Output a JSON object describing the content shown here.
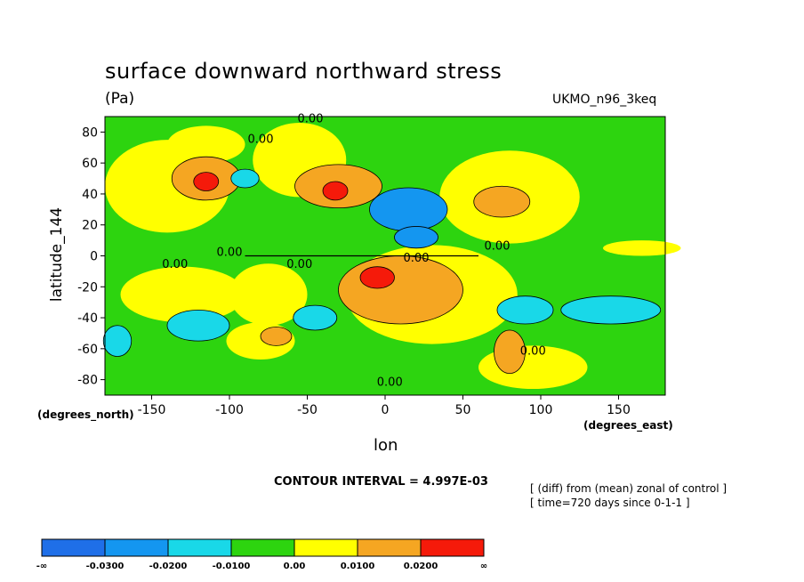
{
  "chart_data": {
    "type": "heatmap",
    "title": "surface downward northward stress",
    "units": "(Pa)",
    "model": "UKMO_n96_3keq",
    "ylabel": "latitude_144",
    "xlabel": "lon",
    "ylabel_units": "(degrees_north)",
    "xlabel_units": "(degrees_east)",
    "xlim": [
      -180,
      180
    ],
    "ylim": [
      -90,
      90
    ],
    "x_ticks": [
      "-150",
      "-100",
      "-50",
      "0",
      "50",
      "100",
      "150"
    ],
    "x_tick_values": [
      -150,
      -100,
      -50,
      0,
      50,
      100,
      150
    ],
    "y_ticks": [
      "80",
      "60",
      "40",
      "20",
      "0",
      "-20",
      "-40",
      "-60",
      "-80"
    ],
    "y_tick_values": [
      80,
      60,
      40,
      20,
      0,
      -20,
      -40,
      -60,
      -80
    ],
    "contour_interval": "CONTOUR INTERVAL = 4.997E-03",
    "notes": [
      "[ (diff) from (mean) zonal of control ]",
      "[ time=720 days since 0-1-1 ]"
    ],
    "contour_labels": [
      {
        "text": "0.00",
        "lon": -80,
        "lat": 76
      },
      {
        "text": "0.00",
        "lon": -48,
        "lat": 89
      },
      {
        "text": "0.00",
        "lon": -135,
        "lat": -5
      },
      {
        "text": "0.00",
        "lon": -100,
        "lat": 3
      },
      {
        "text": "0.00",
        "lon": -55,
        "lat": -5
      },
      {
        "text": "0.00",
        "lon": 20,
        "lat": -1
      },
      {
        "text": "0.00",
        "lon": 72,
        "lat": 7
      },
      {
        "text": "0.00",
        "lon": 95,
        "lat": -61
      },
      {
        "text": "0.00",
        "lon": 3,
        "lat": -81
      }
    ],
    "levels": [
      {
        "label": "-∞",
        "color": "#1f6fe8"
      },
      {
        "label": "-0.0300",
        "color": "#1496f0"
      },
      {
        "label": "-0.0200",
        "color": "#19d8e8"
      },
      {
        "label": "-0.0100",
        "color": "#2dd40f"
      },
      {
        "label": "0.00",
        "color": "#ffff00"
      },
      {
        "label": "0.0100",
        "color": "#f5a622"
      },
      {
        "label": "0.0200",
        "color": "#f51a0a"
      },
      {
        "label": "∞",
        "color": ""
      }
    ],
    "regions": [
      {
        "lon": -115,
        "lat": 50,
        "rlon": 22,
        "rlat": 14,
        "level": 5
      },
      {
        "lon": -115,
        "lat": 48,
        "rlon": 8,
        "rlat": 6,
        "level": 6
      },
      {
        "lon": -30,
        "lat": 45,
        "rlon": 28,
        "rlat": 14,
        "level": 5
      },
      {
        "lon": -32,
        "lat": 42,
        "rlon": 8,
        "rlat": 6,
        "level": 6
      },
      {
        "lon": 10,
        "lat": -22,
        "rlon": 40,
        "rlat": 22,
        "level": 5
      },
      {
        "lon": -5,
        "lat": -14,
        "rlon": 11,
        "rlat": 7,
        "level": 6
      },
      {
        "lon": 75,
        "lat": 35,
        "rlon": 18,
        "rlat": 10,
        "level": 5
      },
      {
        "lon": 80,
        "lat": -62,
        "rlon": 10,
        "rlat": 14,
        "level": 5
      },
      {
        "lon": -70,
        "lat": -52,
        "rlon": 10,
        "rlat": 6,
        "level": 5
      },
      {
        "lon": 15,
        "lat": 30,
        "rlon": 25,
        "rlat": 14,
        "level": 1
      },
      {
        "lon": 20,
        "lat": 12,
        "rlon": 14,
        "rlat": 7,
        "level": 1
      },
      {
        "lon": -90,
        "lat": 50,
        "rlon": 9,
        "rlat": 6,
        "level": 2
      },
      {
        "lon": -45,
        "lat": -40,
        "rlon": 14,
        "rlat": 8,
        "level": 2
      },
      {
        "lon": 90,
        "lat": -35,
        "rlon": 18,
        "rlat": 9,
        "level": 2
      },
      {
        "lon": 145,
        "lat": -35,
        "rlon": 32,
        "rlat": 9,
        "level": 2
      },
      {
        "lon": -120,
        "lat": -45,
        "rlon": 20,
        "rlat": 10,
        "level": 2
      },
      {
        "lon": -172,
        "lat": -55,
        "rlon": 9,
        "rlat": 10,
        "level": 2
      }
    ]
  }
}
